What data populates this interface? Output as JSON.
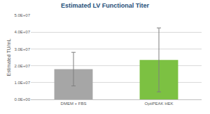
{
  "chart_data": {
    "type": "bar",
    "title": "Estimated LV Functional Titer",
    "y_label": "Estimated TU/mL",
    "categories": [
      "DMEM + FBS",
      "OptiPEAK HEK"
    ],
    "values": [
      18000000,
      23500000
    ],
    "errors": [
      10000000,
      19000000
    ],
    "colors": [
      "#a6a6a6",
      "#7cc142"
    ],
    "ylim": [
      0,
      50000000
    ],
    "yticks": [
      {
        "value": 0,
        "label": "0.0E+00"
      },
      {
        "value": 10000000,
        "label": "1.0E+07"
      },
      {
        "value": 20000000,
        "label": "2.0E+07"
      },
      {
        "value": 30000000,
        "label": "3.0E+07"
      },
      {
        "value": 40000000,
        "label": "4.0E+07"
      },
      {
        "value": 50000000,
        "label": "5.0E+07"
      }
    ],
    "grid": true
  }
}
